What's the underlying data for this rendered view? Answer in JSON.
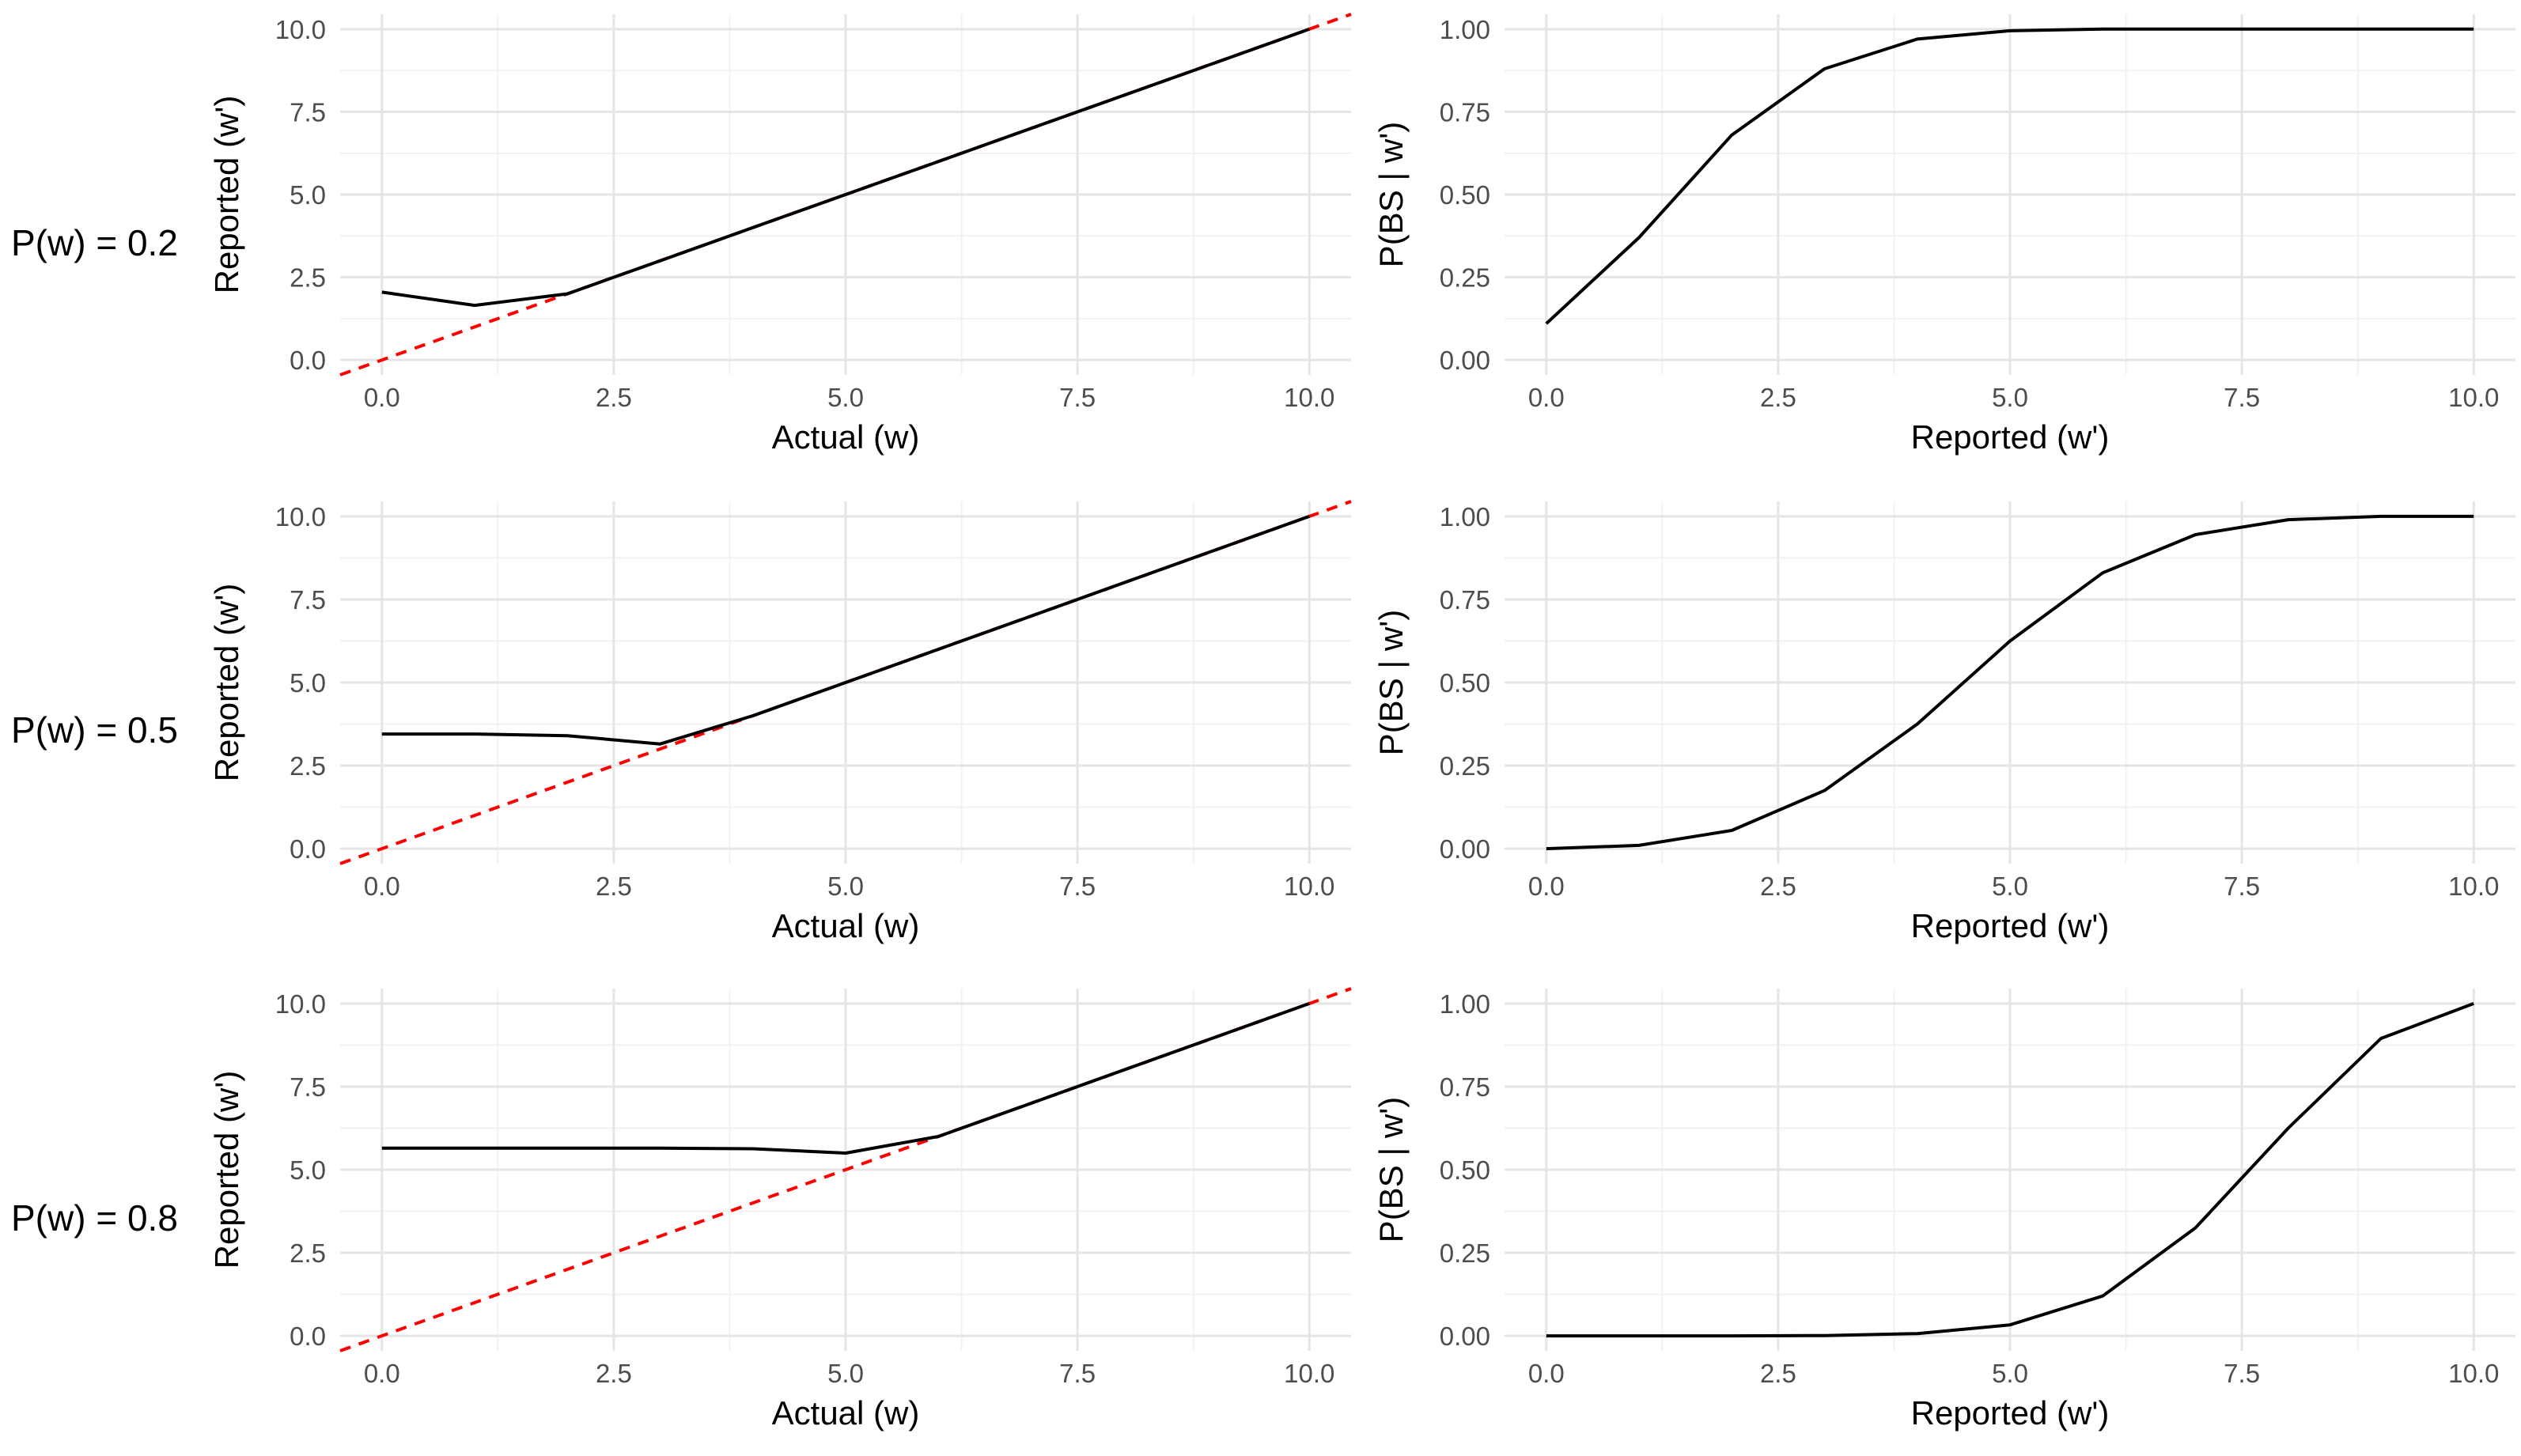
{
  "rows": [
    {
      "label": "P(w) = 0.2"
    },
    {
      "label": "P(w) = 0.5"
    },
    {
      "label": "P(w) = 0.8"
    }
  ],
  "colors": {
    "series": "#000000",
    "reference": "#ff0000",
    "grid_major": "#e5e5e5",
    "grid_minor": "#f2f2f2",
    "tick_text": "#4d4d4d"
  },
  "chart_data": [
    {
      "type": "line",
      "row": 0,
      "col": 0,
      "xlabel": "Actual (w)",
      "ylabel": "Reported (w')",
      "xlim": [
        0,
        10
      ],
      "ylim": [
        0,
        10
      ],
      "xticks": [
        "0.0",
        "2.5",
        "5.0",
        "7.5",
        "10.0"
      ],
      "yticks": [
        "0.0",
        "2.5",
        "5.0",
        "7.5",
        "10.0"
      ],
      "grid": true,
      "series": [
        {
          "x": [
            0,
            1,
            2,
            3,
            4,
            5,
            6,
            7,
            8,
            9,
            10
          ],
          "y": [
            2.05,
            1.65,
            2.0,
            3,
            4,
            5,
            6,
            7,
            8,
            9,
            10
          ]
        }
      ],
      "reference_line": {
        "style": "dashed",
        "slope": 1,
        "intercept": 0
      }
    },
    {
      "type": "line",
      "row": 0,
      "col": 1,
      "xlabel": "Reported (w')",
      "ylabel": "P(BS | w')",
      "xlim": [
        0,
        10
      ],
      "ylim": [
        0,
        1
      ],
      "xticks": [
        "0.0",
        "2.5",
        "5.0",
        "7.5",
        "10.0"
      ],
      "yticks": [
        "0.00",
        "0.25",
        "0.50",
        "0.75",
        "1.00"
      ],
      "grid": true,
      "series": [
        {
          "x": [
            0,
            1,
            2,
            3,
            4,
            5,
            6,
            7,
            8,
            9,
            10
          ],
          "y": [
            0.11,
            0.37,
            0.68,
            0.88,
            0.97,
            0.995,
            1,
            1,
            1,
            1,
            1
          ]
        }
      ]
    },
    {
      "type": "line",
      "row": 1,
      "col": 0,
      "xlabel": "Actual (w)",
      "ylabel": "Reported (w')",
      "xlim": [
        0,
        10
      ],
      "ylim": [
        0,
        10
      ],
      "xticks": [
        "0.0",
        "2.5",
        "5.0",
        "7.5",
        "10.0"
      ],
      "yticks": [
        "0.0",
        "2.5",
        "5.0",
        "7.5",
        "10.0"
      ],
      "grid": true,
      "series": [
        {
          "x": [
            0,
            1,
            2,
            3,
            4,
            5,
            6,
            7,
            8,
            9,
            10
          ],
          "y": [
            3.45,
            3.45,
            3.4,
            3.15,
            4,
            5,
            6,
            7,
            8,
            9,
            10
          ]
        }
      ],
      "reference_line": {
        "style": "dashed",
        "slope": 1,
        "intercept": 0
      }
    },
    {
      "type": "line",
      "row": 1,
      "col": 1,
      "xlabel": "Reported (w')",
      "ylabel": "P(BS | w')",
      "xlim": [
        0,
        10
      ],
      "ylim": [
        0,
        1
      ],
      "xticks": [
        "0.0",
        "2.5",
        "5.0",
        "7.5",
        "10.0"
      ],
      "yticks": [
        "0.00",
        "0.25",
        "0.50",
        "0.75",
        "1.00"
      ],
      "grid": true,
      "series": [
        {
          "x": [
            0,
            1,
            2,
            3,
            4,
            5,
            6,
            7,
            8,
            9,
            10
          ],
          "y": [
            0.0,
            0.01,
            0.055,
            0.175,
            0.375,
            0.625,
            0.83,
            0.945,
            0.99,
            1,
            1
          ]
        }
      ]
    },
    {
      "type": "line",
      "row": 2,
      "col": 0,
      "xlabel": "Actual (w)",
      "ylabel": "Reported (w')",
      "xlim": [
        0,
        10
      ],
      "ylim": [
        0,
        10
      ],
      "xticks": [
        "0.0",
        "2.5",
        "5.0",
        "7.5",
        "10.0"
      ],
      "yticks": [
        "0.0",
        "2.5",
        "5.0",
        "7.5",
        "10.0"
      ],
      "grid": true,
      "series": [
        {
          "x": [
            0,
            1,
            2,
            3,
            4,
            5,
            6,
            7,
            8,
            9,
            10
          ],
          "y": [
            5.65,
            5.65,
            5.65,
            5.65,
            5.63,
            5.5,
            6,
            7,
            8,
            9,
            10
          ]
        }
      ],
      "reference_line": {
        "style": "dashed",
        "slope": 1,
        "intercept": 0
      }
    },
    {
      "type": "line",
      "row": 2,
      "col": 1,
      "xlabel": "Reported (w')",
      "ylabel": "P(BS | w')",
      "xlim": [
        0,
        10
      ],
      "ylim": [
        0,
        1
      ],
      "xticks": [
        "0.0",
        "2.5",
        "5.0",
        "7.5",
        "10.0"
      ],
      "yticks": [
        "0.00",
        "0.25",
        "0.50",
        "0.75",
        "1.00"
      ],
      "grid": true,
      "series": [
        {
          "x": [
            0,
            1,
            2,
            3,
            4,
            5,
            6,
            7,
            8,
            9,
            10
          ],
          "y": [
            0,
            0,
            0,
            0.001,
            0.007,
            0.033,
            0.12,
            0.325,
            0.625,
            0.895,
            1
          ]
        }
      ]
    }
  ]
}
